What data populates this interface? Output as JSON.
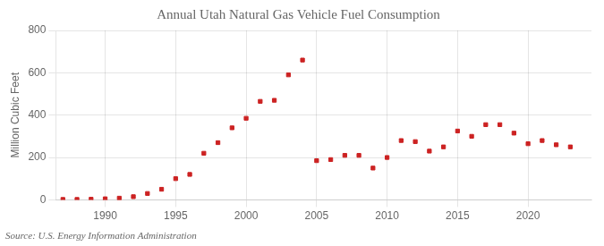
{
  "chart_data": {
    "type": "scatter",
    "title": "Annual Utah Natural Gas Vehicle Fuel Consumption",
    "ylabel": "Million Cubic Feet",
    "annotations": [
      "Source: U.S. Energy Information Administration"
    ],
    "x": [
      1987,
      1988,
      1989,
      1990,
      1991,
      1992,
      1993,
      1994,
      1995,
      1996,
      1997,
      1998,
      1999,
      2000,
      2001,
      2002,
      2003,
      2004,
      2005,
      2006,
      2007,
      2008,
      2009,
      2010,
      2011,
      2012,
      2013,
      2014,
      2015,
      2016,
      2017,
      2018,
      2019,
      2020,
      2021,
      2022,
      2023
    ],
    "values": [
      2,
      2,
      3,
      5,
      8,
      15,
      30,
      50,
      100,
      120,
      220,
      270,
      340,
      385,
      465,
      470,
      590,
      660,
      185,
      190,
      210,
      210,
      150,
      200,
      280,
      275,
      230,
      250,
      325,
      300,
      355,
      355,
      315,
      265,
      280,
      260,
      250
    ],
    "color": "#cc2222",
    "marker": "square",
    "xlim": [
      1986.5,
      2024.5
    ],
    "xticks": [
      1990,
      1995,
      2000,
      2005,
      2010,
      2015,
      2020
    ],
    "ylim": [
      0,
      800
    ],
    "yticks": [
      0,
      200,
      400,
      600,
      800
    ],
    "grid": true
  }
}
